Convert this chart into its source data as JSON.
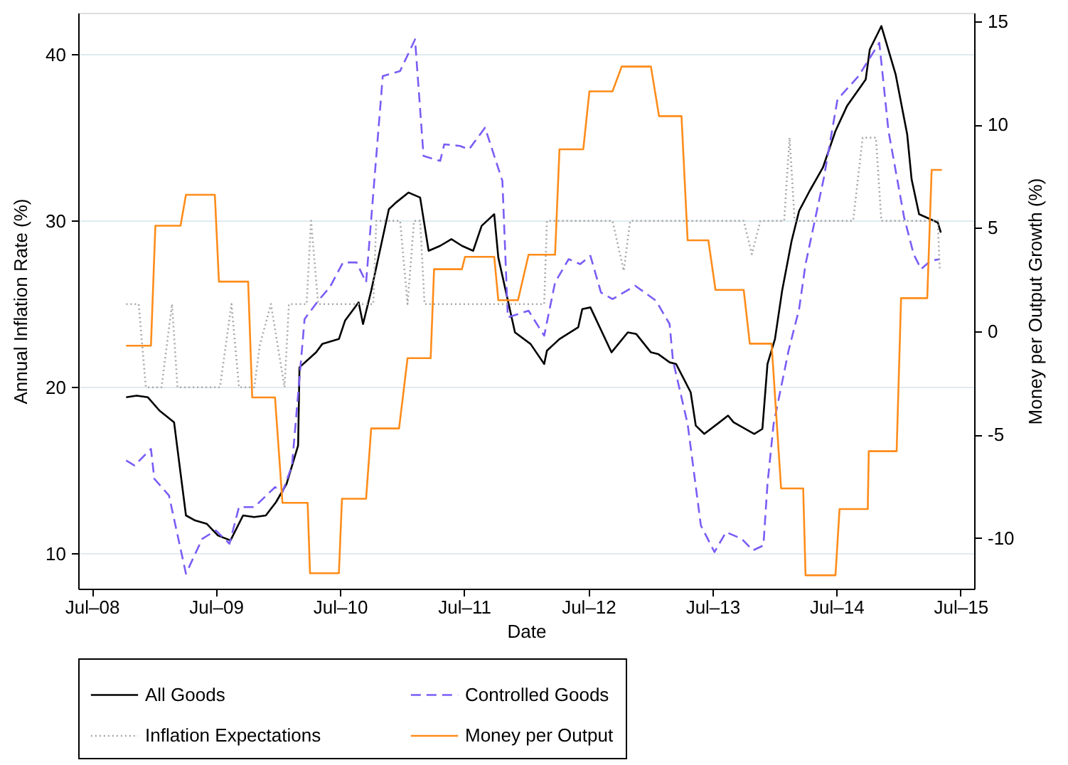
{
  "chart_data": {
    "type": "line",
    "xlabel": "Date",
    "ylabel": "Annual Inflation Rate (%)",
    "y2label": "Money per Output Growth (%)",
    "xlim": [
      "2008-05-22",
      "2015-08-10"
    ],
    "xticks": [
      {
        "value": "2008-07",
        "label": "Jul–08"
      },
      {
        "value": "2009-07",
        "label": "Jul–09"
      },
      {
        "value": "2010-07",
        "label": "Jul–10"
      },
      {
        "value": "2011-07",
        "label": "Jul–11"
      },
      {
        "value": "2012-07",
        "label": "Jul–12"
      },
      {
        "value": "2013-07",
        "label": "Jul–13"
      },
      {
        "value": "2014-07",
        "label": "Jul–14"
      },
      {
        "value": "2015-07",
        "label": "Jul–15"
      }
    ],
    "ylim": [
      7.9,
      42.5
    ],
    "yticks": [
      10,
      20,
      30,
      40
    ],
    "y2lim": [
      -12.45,
      15.4
    ],
    "y2ticks": [
      -10,
      -5,
      0,
      5,
      10,
      15
    ],
    "grid": "y",
    "legend": "bottom",
    "series": [
      {
        "name": "All Goods",
        "color": "#000000",
        "line_style": "solid",
        "x": [
          "2008-10-10",
          "2008-11-10",
          "2008-12-13",
          "2009-01-16",
          "2009-02-28",
          "2009-04-04",
          "2009-05-01",
          "2009-06-04",
          "2009-07-07",
          "2009-08-13",
          "2009-09-19",
          "2009-10-22",
          "2009-11-25",
          "2009-12-25",
          "2010-01-25",
          "2010-02-28",
          "2010-03-04",
          "2010-04-22",
          "2010-05-10",
          "2010-06-28",
          "2010-07-16",
          "2010-08-25",
          "2010-09-07",
          "2010-10-01",
          "2010-11-22",
          "2010-12-13",
          "2011-01-19",
          "2011-02-22",
          "2011-03-19",
          "2011-04-22",
          "2011-05-25",
          "2011-06-25",
          "2011-07-28",
          "2011-08-22",
          "2011-09-28",
          "2011-10-10",
          "2011-11-28",
          "2012-01-13",
          "2012-02-22",
          "2012-03-01",
          "2012-04-07",
          "2012-06-01",
          "2012-06-13",
          "2012-07-07",
          "2012-09-07",
          "2012-10-25",
          "2012-11-19",
          "2013-01-01",
          "2013-01-22",
          "2013-02-25",
          "2013-03-16",
          "2013-04-28",
          "2013-05-13",
          "2013-06-07",
          "2013-07-22",
          "2013-08-16",
          "2013-09-01",
          "2013-11-01",
          "2013-11-25",
          "2013-12-10",
          "2014-01-01",
          "2014-01-22",
          "2014-02-19",
          "2014-03-13",
          "2014-04-13",
          "2014-05-22",
          "2014-06-28",
          "2014-08-01",
          "2014-09-25",
          "2014-10-07",
          "2014-11-10",
          "2014-12-22",
          "2015-01-25",
          "2015-02-07",
          "2015-03-01",
          "2015-04-25",
          "2015-05-04"
        ],
        "values": [
          19.4,
          19.5,
          19.4,
          18.6,
          17.9,
          12.3,
          12.0,
          11.8,
          11.1,
          10.8,
          12.3,
          12.2,
          12.3,
          13.1,
          14.2,
          16.5,
          21.2,
          22.1,
          22.6,
          22.9,
          24.0,
          25.1,
          23.8,
          25.8,
          30.7,
          31.1,
          31.7,
          31.4,
          28.2,
          28.5,
          28.9,
          28.5,
          28.2,
          29.7,
          30.4,
          27.8,
          23.3,
          22.6,
          21.4,
          22.2,
          22.9,
          23.6,
          24.7,
          24.8,
          22.1,
          23.3,
          23.2,
          22.1,
          22.0,
          21.5,
          21.4,
          19.7,
          17.7,
          17.2,
          17.9,
          18.3,
          17.9,
          17.2,
          17.5,
          21.4,
          22.9,
          25.8,
          28.8,
          30.6,
          31.8,
          33.2,
          35.4,
          36.9,
          38.5,
          40.3,
          41.7,
          38.8,
          35.2,
          32.5,
          30.4,
          29.9,
          29.3
        ]
      },
      {
        "name": "Controlled Goods",
        "color": "#7b5cf5",
        "line_style": "dashed",
        "x": [
          "2008-10-10",
          "2008-11-04",
          "2008-12-22",
          "2009-01-01",
          "2009-02-13",
          "2009-04-04",
          "2009-05-22",
          "2009-07-01",
          "2009-08-10",
          "2009-09-07",
          "2009-10-22",
          "2009-12-22",
          "2010-01-13",
          "2010-02-10",
          "2010-03-19",
          "2010-04-28",
          "2010-06-01",
          "2010-07-10",
          "2010-08-19",
          "2010-09-16",
          "2010-11-04",
          "2010-12-25",
          "2011-02-07",
          "2011-03-04",
          "2011-04-22",
          "2011-05-04",
          "2011-06-19",
          "2011-07-16",
          "2011-09-01",
          "2011-10-22",
          "2011-11-07",
          "2012-01-07",
          "2012-02-22",
          "2012-03-25",
          "2012-05-04",
          "2012-06-07",
          "2012-07-07",
          "2012-08-07",
          "2012-09-10",
          "2012-11-16",
          "2013-01-16",
          "2013-02-25",
          "2013-03-07",
          "2013-04-19",
          "2013-05-28",
          "2013-07-07",
          "2013-08-10",
          "2013-09-25",
          "2013-10-28",
          "2013-11-28",
          "2013-12-10",
          "2013-12-28",
          "2014-02-10",
          "2014-03-13",
          "2014-04-01",
          "2014-05-25",
          "2014-07-04",
          "2014-09-04",
          "2014-11-04",
          "2014-12-01",
          "2015-01-16",
          "2015-02-13",
          "2015-03-07",
          "2015-04-04",
          "2015-05-01"
        ],
        "values": [
          15.6,
          15.3,
          16.3,
          14.5,
          13.5,
          8.8,
          10.9,
          11.4,
          10.6,
          12.8,
          12.8,
          14.0,
          13.7,
          15.3,
          24.1,
          25.2,
          26.0,
          27.5,
          27.5,
          26.3,
          38.7,
          39.0,
          40.9,
          33.9,
          33.6,
          34.6,
          34.5,
          34.3,
          35.6,
          32.4,
          24.2,
          24.6,
          23.1,
          26.3,
          27.7,
          27.4,
          27.9,
          25.7,
          25.3,
          26.1,
          25.2,
          23.8,
          21.6,
          17.8,
          11.7,
          10.1,
          11.3,
          10.9,
          10.2,
          10.5,
          14.2,
          17.8,
          22.2,
          24.7,
          27.4,
          32.6,
          37.3,
          38.7,
          40.7,
          35.4,
          30.2,
          28.0,
          27.1,
          27.6,
          27.7
        ]
      },
      {
        "name": "Inflation Expectations",
        "color": "#a8a8a8",
        "line_style": "dotted",
        "x": [
          "2008-10-10",
          "2008-11-16",
          "2008-12-07",
          "2009-01-22",
          "2009-02-22",
          "2009-03-10",
          "2009-07-13",
          "2009-08-16",
          "2009-09-07",
          "2009-10-22",
          "2009-11-07",
          "2009-12-10",
          "2010-01-19",
          "2010-02-01",
          "2010-03-25",
          "2010-04-07",
          "2010-04-28",
          "2010-10-07",
          "2010-10-16",
          "2010-12-25",
          "2011-01-16",
          "2011-02-04",
          "2011-02-22",
          "2011-03-07",
          "2012-02-22",
          "2012-03-01",
          "2012-09-10",
          "2012-10-13",
          "2012-11-01",
          "2013-10-01",
          "2013-10-25",
          "2013-11-19",
          "2014-01-28",
          "2014-02-13",
          "2014-02-28",
          "2014-08-19",
          "2014-09-16",
          "2014-10-25",
          "2014-11-10",
          "2015-04-25",
          "2015-05-01"
        ],
        "values": [
          25,
          25,
          20,
          20,
          25,
          20,
          20,
          25,
          20,
          20,
          22.5,
          25,
          20,
          25,
          25,
          30,
          25,
          25,
          30,
          30,
          25,
          30,
          30,
          25,
          25,
          30,
          30,
          27,
          30,
          30,
          28,
          30,
          30,
          35,
          30,
          30,
          35,
          35,
          30,
          30,
          27
        ]
      },
      {
        "name": "Money per Output",
        "color": "#ff8c1a",
        "line_style": "solid",
        "axis": "y2",
        "x": [
          "2008-10-10",
          "2008-12-22",
          "2009-01-04",
          "2009-03-19",
          "2009-04-04",
          "2009-06-28",
          "2009-07-10",
          "2009-10-04",
          "2009-10-16",
          "2009-12-22",
          "2010-01-13",
          "2010-03-28",
          "2010-04-04",
          "2010-06-28",
          "2010-07-07",
          "2010-09-16",
          "2010-10-01",
          "2010-12-22",
          "2011-01-16",
          "2011-03-25",
          "2011-04-04",
          "2011-06-25",
          "2011-07-04",
          "2011-09-28",
          "2011-10-10",
          "2011-12-07",
          "2012-01-07",
          "2012-03-25",
          "2012-04-07",
          "2012-06-16",
          "2012-07-04",
          "2012-09-10",
          "2012-10-07",
          "2013-01-01",
          "2013-01-25",
          "2013-04-01",
          "2013-04-19",
          "2013-06-19",
          "2013-07-10",
          "2013-10-01",
          "2013-10-19",
          "2013-12-22",
          "2014-01-19",
          "2014-03-25",
          "2014-04-01",
          "2014-06-28",
          "2014-07-10",
          "2014-10-01",
          "2014-10-04",
          "2014-12-25",
          "2015-01-07",
          "2015-03-25",
          "2015-04-07",
          "2015-05-07"
        ],
        "values": [
          -0.7,
          -0.7,
          5.1,
          5.1,
          6.6,
          6.6,
          2.4,
          2.4,
          -3.2,
          -3.2,
          -8.3,
          -8.3,
          -11.7,
          -11.7,
          -8.1,
          -8.1,
          -4.7,
          -4.7,
          -1.3,
          -1.3,
          3.0,
          3.0,
          3.6,
          3.6,
          1.5,
          1.5,
          3.7,
          3.7,
          8.8,
          8.8,
          11.6,
          11.6,
          12.8,
          12.8,
          10.4,
          10.4,
          4.4,
          4.4,
          2.0,
          2.0,
          -0.6,
          -0.6,
          -7.6,
          -7.6,
          -11.8,
          -11.8,
          -8.6,
          -8.6,
          -5.8,
          -5.8,
          1.6,
          1.6,
          7.8,
          7.8
        ]
      }
    ]
  }
}
